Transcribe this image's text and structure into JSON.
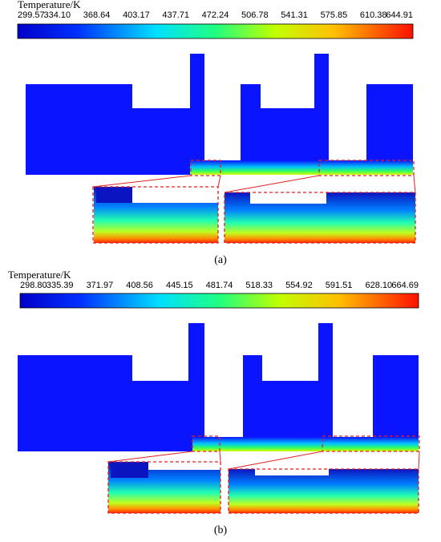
{
  "panels": [
    {
      "colorbar": {
        "title": "Temperature/K",
        "ticks": [
          "299.57",
          "334.10",
          "368.64",
          "403.17",
          "437.71",
          "472.24",
          "506.78",
          "541.31",
          "575.85",
          "610.38",
          "644.91"
        ]
      },
      "label": "(a)"
    },
    {
      "colorbar": {
        "title": "Temperature/K",
        "ticks": [
          "298.80",
          "335.39",
          "371.97",
          "408.56",
          "445.15",
          "481.74",
          "518.33",
          "554.92",
          "591.51",
          "628.10",
          "664.69"
        ]
      },
      "label": "(b)"
    }
  ]
}
